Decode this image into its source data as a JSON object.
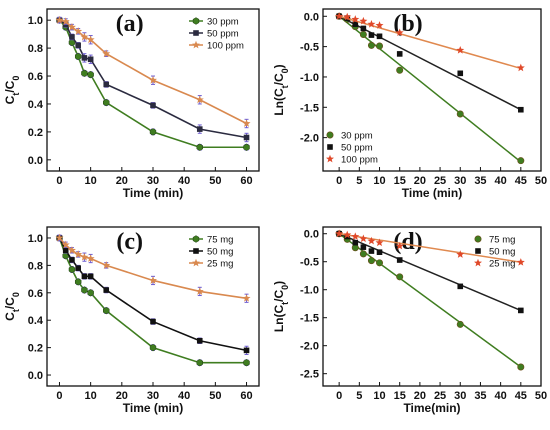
{
  "colors": {
    "green": "#3f7d20",
    "dark": "#2b2b40",
    "orange": "#d9894f",
    "black": "#111111"
  },
  "chart_data": [
    {
      "panel": "(a)",
      "type": "line",
      "xlabel": "Time (min)",
      "ylabel": "Ct/C0",
      "xlim": [
        -4,
        64
      ],
      "ylim": [
        -0.08,
        1.08
      ],
      "xticks": [
        0,
        10,
        20,
        30,
        40,
        50,
        60
      ],
      "yticks": [
        0.0,
        0.2,
        0.4,
        0.6,
        0.8,
        1.0
      ],
      "ytick_labels": [
        "0.0",
        "0.2",
        "0.4",
        "0.6",
        "0.8",
        "1.0"
      ],
      "legend_position": "top-right",
      "x": [
        0,
        2,
        4,
        6,
        8,
        10,
        15,
        30,
        45,
        60
      ],
      "series": [
        {
          "name": "30  ppm",
          "color": "#3f7d20",
          "marker": "hexagon",
          "values": [
            1.0,
            0.95,
            0.84,
            0.74,
            0.62,
            0.61,
            0.41,
            0.2,
            0.09,
            0.09
          ],
          "errors": [
            0.02,
            0.02,
            0.02,
            0.02,
            0.02,
            0.02,
            0.02,
            0.02,
            0.02,
            0.02
          ]
        },
        {
          "name": "50   ppm",
          "color": "#2b2b40",
          "marker": "square",
          "values": [
            1.0,
            0.97,
            0.88,
            0.82,
            0.73,
            0.72,
            0.54,
            0.39,
            0.22,
            0.16
          ],
          "errors": [
            0.02,
            0.02,
            0.02,
            0.02,
            0.03,
            0.03,
            0.02,
            0.02,
            0.03,
            0.03
          ]
        },
        {
          "name": "100 ppm",
          "color": "#d9894f",
          "marker": "star",
          "values": [
            1.0,
            0.99,
            0.95,
            0.92,
            0.88,
            0.86,
            0.76,
            0.57,
            0.43,
            0.26
          ],
          "errors": [
            0.02,
            0.02,
            0.02,
            0.02,
            0.03,
            0.03,
            0.02,
            0.03,
            0.03,
            0.03
          ]
        }
      ]
    },
    {
      "panel": "(b)",
      "type": "scatter",
      "xlabel": "Time (min)",
      "ylabel": "Ln(Ct/C0)",
      "xlim": [
        -4,
        50
      ],
      "ylim": [
        -2.55,
        0.12
      ],
      "xticks": [
        0,
        5,
        10,
        15,
        20,
        25,
        30,
        35,
        40,
        45,
        50
      ],
      "yticks": [
        0.0,
        -0.5,
        -1.0,
        -1.5,
        -2.0
      ],
      "ytick_labels": [
        "0.0",
        "-0.5",
        "-1.0",
        "-1.5",
        "-2.0"
      ],
      "legend_position": "bottom-left",
      "x": [
        0,
        2,
        4,
        6,
        8,
        10,
        15,
        30,
        45
      ],
      "series": [
        {
          "name": "30 ppm",
          "color": "#3f7d20",
          "marker": "circle",
          "values": [
            0.0,
            -0.05,
            -0.17,
            -0.3,
            -0.48,
            -0.49,
            -0.89,
            -1.61,
            -2.38
          ],
          "fit": [
            0.0,
            -2.4
          ]
        },
        {
          "name": "50 ppm",
          "color": "#111111",
          "marker": "square",
          "values": [
            0.0,
            -0.03,
            -0.13,
            -0.2,
            -0.31,
            -0.33,
            -0.62,
            -0.94,
            -1.54
          ],
          "fit": [
            0.0,
            -1.54
          ]
        },
        {
          "name": "100 ppm",
          "color": "#e0492a",
          "marker": "star",
          "values": [
            0.0,
            -0.01,
            -0.05,
            -0.08,
            -0.13,
            -0.15,
            -0.27,
            -0.56,
            -0.85
          ],
          "fit": [
            0.0,
            -0.86
          ]
        }
      ]
    },
    {
      "panel": "(c)",
      "type": "line",
      "xlabel": "Time (min)",
      "ylabel": "Ct/C0",
      "xlim": [
        -4,
        64
      ],
      "ylim": [
        -0.08,
        1.08
      ],
      "xticks": [
        0,
        10,
        20,
        30,
        40,
        50,
        60
      ],
      "yticks": [
        0.0,
        0.2,
        0.4,
        0.6,
        0.8,
        1.0
      ],
      "ytick_labels": [
        "0.0",
        "0.2",
        "0.4",
        "0.6",
        "0.8",
        "1.0"
      ],
      "legend_position": "top-right",
      "x": [
        0,
        2,
        4,
        6,
        8,
        10,
        15,
        30,
        45,
        60
      ],
      "series": [
        {
          "name": "75 mg",
          "color": "#3f7d20",
          "marker": "hexagon",
          "values": [
            1.0,
            0.87,
            0.77,
            0.68,
            0.62,
            0.6,
            0.47,
            0.2,
            0.09,
            0.09
          ],
          "errors": [
            0.02,
            0.02,
            0.02,
            0.02,
            0.02,
            0.02,
            0.02,
            0.02,
            0.02,
            0.02
          ]
        },
        {
          "name": "50 mg",
          "color": "#111111",
          "marker": "square",
          "values": [
            1.0,
            0.91,
            0.84,
            0.78,
            0.72,
            0.72,
            0.62,
            0.39,
            0.25,
            0.18
          ],
          "errors": [
            0.02,
            0.02,
            0.02,
            0.02,
            0.02,
            0.02,
            0.02,
            0.02,
            0.02,
            0.03
          ]
        },
        {
          "name": "25 mg",
          "color": "#d9894f",
          "marker": "star",
          "values": [
            1.0,
            0.95,
            0.91,
            0.88,
            0.86,
            0.85,
            0.8,
            0.69,
            0.61,
            0.56
          ],
          "errors": [
            0.02,
            0.02,
            0.02,
            0.02,
            0.03,
            0.03,
            0.02,
            0.03,
            0.03,
            0.03
          ]
        }
      ]
    },
    {
      "panel": "(d)",
      "type": "scatter",
      "xlabel": "Time(min)",
      "ylabel": "Ln(Ct/C0)",
      "xlim": [
        -4,
        50
      ],
      "ylim": [
        -2.72,
        0.12
      ],
      "xticks": [
        0,
        5,
        10,
        15,
        20,
        25,
        30,
        35,
        40,
        45,
        50
      ],
      "yticks": [
        0.0,
        -0.5,
        -1.0,
        -1.5,
        -2.0,
        -2.5
      ],
      "ytick_labels": [
        "0.0",
        "-0.5",
        "-1.0",
        "-1.5",
        "-2.0",
        "-2.5"
      ],
      "legend_position": "top-right",
      "x": [
        0,
        2,
        4,
        6,
        8,
        10,
        15,
        30,
        45
      ],
      "series": [
        {
          "name": "75 mg",
          "color": "#3f7d20",
          "marker": "circle",
          "values": [
            0.0,
            -0.1,
            -0.25,
            -0.36,
            -0.48,
            -0.52,
            -0.77,
            -1.62,
            -2.38
          ],
          "fit": [
            0.0,
            -2.38
          ]
        },
        {
          "name": "50 mg",
          "color": "#111111",
          "marker": "square",
          "values": [
            0.0,
            -0.05,
            -0.16,
            -0.24,
            -0.31,
            -0.33,
            -0.47,
            -0.94,
            -1.37
          ],
          "fit": [
            0.0,
            -1.37
          ]
        },
        {
          "name": "25 mg",
          "color": "#e0492a",
          "marker": "star",
          "values": [
            0.0,
            -0.02,
            -0.05,
            -0.09,
            -0.13,
            -0.16,
            -0.22,
            -0.37,
            -0.51
          ],
          "fit": [
            0.0,
            -0.51
          ]
        }
      ]
    }
  ]
}
